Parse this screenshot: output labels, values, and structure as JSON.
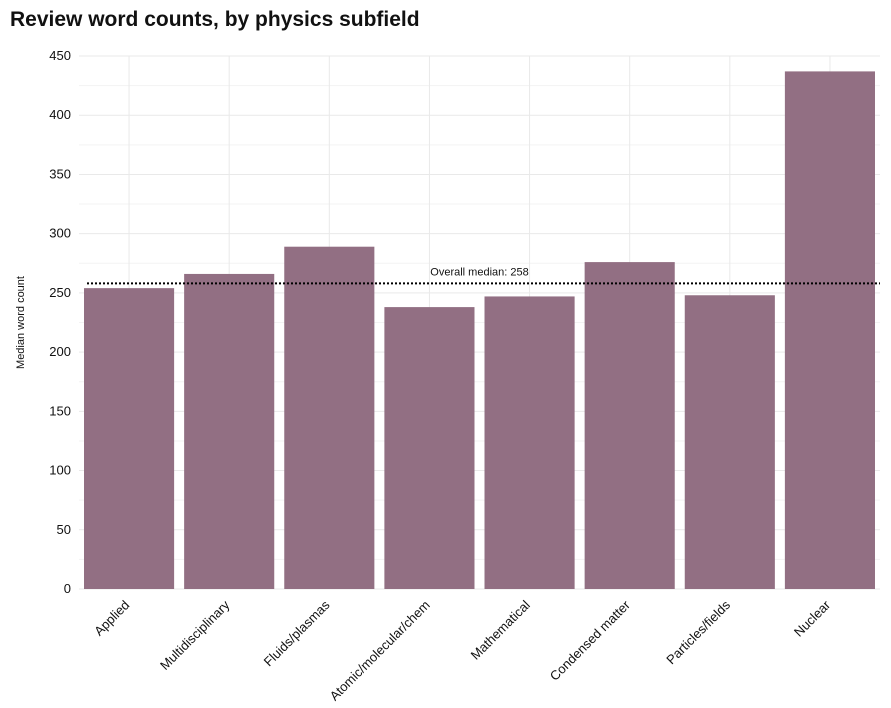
{
  "chart_data": {
    "type": "bar",
    "title": "Review word counts, by physics subfield",
    "xlabel": "",
    "ylabel": "Median word count",
    "categories": [
      "Applied",
      "Multidisciplinary",
      "Fluids/plasmas",
      "Atomic/molecular/chem",
      "Mathematical",
      "Condensed matter",
      "Particles/fields",
      "Nuclear"
    ],
    "values": [
      254,
      266,
      289,
      238,
      247,
      276,
      248,
      437
    ],
    "ylim": [
      0,
      450
    ],
    "yticks": [
      0,
      50,
      100,
      150,
      200,
      250,
      300,
      350,
      400,
      450
    ],
    "grid": true,
    "bar_color": "#926f83",
    "reference_line": {
      "value": 258,
      "label": "Overall median: 258",
      "style": "dotted"
    }
  }
}
